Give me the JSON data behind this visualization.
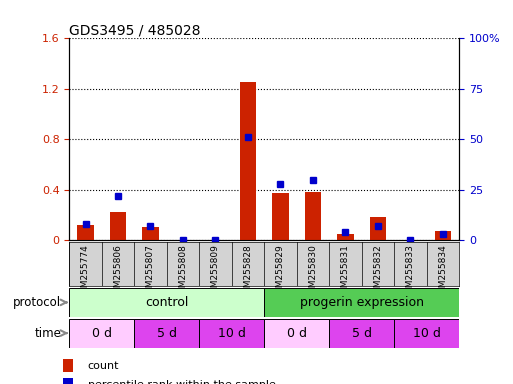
{
  "title": "GDS3495 / 485028",
  "samples": [
    "GSM255774",
    "GSM255806",
    "GSM255807",
    "GSM255808",
    "GSM255809",
    "GSM255828",
    "GSM255829",
    "GSM255830",
    "GSM255831",
    "GSM255832",
    "GSM255833",
    "GSM255834"
  ],
  "count_values": [
    0.12,
    0.22,
    0.1,
    0.0,
    0.0,
    1.25,
    0.37,
    0.38,
    0.05,
    0.18,
    0.0,
    0.07
  ],
  "percentile_values": [
    8,
    22,
    7,
    0,
    0,
    51,
    28,
    30,
    4,
    7,
    0,
    3
  ],
  "count_color": "#cc2200",
  "percentile_color": "#0000cc",
  "ylim_left": [
    0,
    1.6
  ],
  "ylim_right": [
    0,
    100
  ],
  "yticks_left": [
    0,
    0.4,
    0.8,
    1.2,
    1.6
  ],
  "yticks_right": [
    0,
    25,
    50,
    75,
    100
  ],
  "ytick_labels_left": [
    "0",
    "0.4",
    "0.8",
    "1.2",
    "1.6"
  ],
  "ytick_labels_right": [
    "0",
    "25",
    "50",
    "75",
    "100%"
  ],
  "bg_color": "#ffffff",
  "plot_bg_color": "#ffffff",
  "xaxis_bg_color": "#d3d3d3",
  "control_color": "#ccffcc",
  "progerin_color": "#55cc55",
  "time_white": "#ffccff",
  "time_pink": "#dd44dd",
  "dotted_grid_color": "#000000"
}
